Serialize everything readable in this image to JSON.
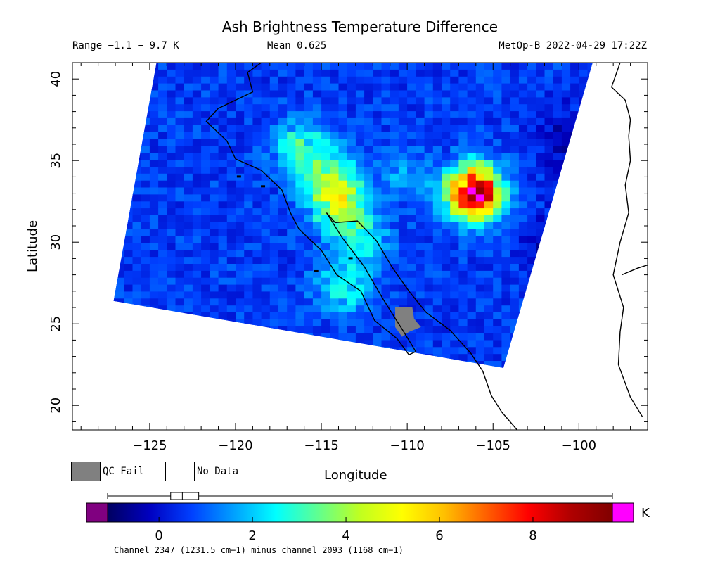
{
  "header": {
    "title": "Ash Brightness Temperature Difference",
    "range_text": "Range −1.1 − 9.7 K",
    "mean_text": "Mean 0.625",
    "satellite_text": "MetOp-B 2022-04-29 17:22Z"
  },
  "legend": {
    "qc_fail_label": "QC Fail",
    "qc_fail_color": "#808080",
    "no_data_label": "No Data",
    "no_data_color": "#ffffff"
  },
  "colorbar": {
    "unit": "K",
    "vmin": -1.1,
    "vmax": 9.7,
    "under_color": "#800080",
    "over_color": "#ff00ff",
    "ticks": [
      {
        "value": 0,
        "label": "0"
      },
      {
        "value": 2,
        "label": "2"
      },
      {
        "value": 4,
        "label": "4"
      },
      {
        "value": 6,
        "label": "6"
      },
      {
        "value": 8,
        "label": "8"
      }
    ],
    "boxplot": {
      "min": -1.1,
      "q1": 0.25,
      "median": 0.5,
      "q3": 0.85,
      "max": 9.7
    },
    "stops": [
      "#000060",
      "#0000c0",
      "#0040ff",
      "#00a0ff",
      "#00ffff",
      "#60ff90",
      "#c0ff20",
      "#ffff00",
      "#ffc000",
      "#ff6000",
      "#ff0000",
      "#b00000",
      "#800000"
    ]
  },
  "footer": {
    "subtitle": "Channel 2347 (1231.5 cm−1) minus channel 2093 (1168 cm−1)"
  },
  "chart_data": {
    "type": "heatmap",
    "title": "Ash Brightness Temperature Difference",
    "xlabel": "Longitude",
    "ylabel": "Latitude",
    "xlim": [
      -129.5,
      -96
    ],
    "ylim": [
      18.5,
      41
    ],
    "x_ticks": [
      {
        "value": -125,
        "label": "−125"
      },
      {
        "value": -120,
        "label": "−120"
      },
      {
        "value": -115,
        "label": "−115"
      },
      {
        "value": -110,
        "label": "−110"
      },
      {
        "value": -105,
        "label": "−105"
      },
      {
        "value": -100,
        "label": "−100"
      }
    ],
    "y_ticks": [
      {
        "value": 20,
        "label": "20"
      },
      {
        "value": 25,
        "label": "25"
      },
      {
        "value": 30,
        "label": "30"
      },
      {
        "value": 35,
        "label": "35"
      },
      {
        "value": 40,
        "label": "40"
      }
    ],
    "swath_corners": [
      [
        -124.6,
        41
      ],
      [
        -99.2,
        41
      ],
      [
        -104.4,
        22.3
      ],
      [
        -127.1,
        26.4
      ]
    ],
    "background_value": 0.6,
    "enhanced_regions": [
      {
        "lon": -116.3,
        "lat": 35.7,
        "value": 3.2
      },
      {
        "lon": -114.8,
        "lat": 33.8,
        "value": 3.4
      },
      {
        "lon": -114.2,
        "lat": 32.1,
        "value": 5.0
      },
      {
        "lon": -113.0,
        "lat": 30.0,
        "value": 2.6
      },
      {
        "lon": -114.0,
        "lat": 27.0,
        "value": 2.8
      },
      {
        "lon": -110.5,
        "lat": 34.0,
        "value": 1.8
      },
      {
        "lon": -106.5,
        "lat": 32.5,
        "value": 2.2
      },
      {
        "lon": -106.3,
        "lat": 32.9,
        "value": 8.9
      }
    ],
    "cold_regions": [
      {
        "lon": -101.5,
        "lat": 29.2,
        "value": -0.6
      },
      {
        "lon": -101.0,
        "lat": 36.0,
        "value": -0.3
      }
    ],
    "qc_fail_region": {
      "lon": -110.1,
      "lat": 25.1
    }
  }
}
